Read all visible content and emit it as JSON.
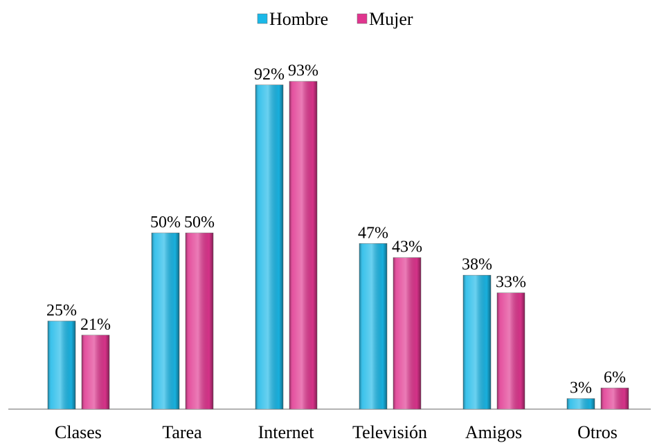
{
  "chart_data": {
    "type": "bar",
    "categories": [
      "Clases",
      "Tarea",
      "Internet",
      "Televisión",
      "Amigos",
      "Otros"
    ],
    "series": [
      {
        "name": "Hombre",
        "color": "#1ab8e8",
        "values": [
          25,
          50,
          92,
          47,
          38,
          3
        ],
        "value_labels": [
          "25%",
          "50%",
          "92%",
          "47%",
          "38%",
          "3%"
        ]
      },
      {
        "name": "Mujer",
        "color": "#e0358f",
        "values": [
          21,
          50,
          93,
          43,
          33,
          6
        ],
        "value_labels": [
          "21%",
          "50%",
          "93%",
          "43%",
          "33%",
          "6%"
        ]
      }
    ],
    "ylim": [
      0,
      100
    ],
    "legend": "top"
  }
}
